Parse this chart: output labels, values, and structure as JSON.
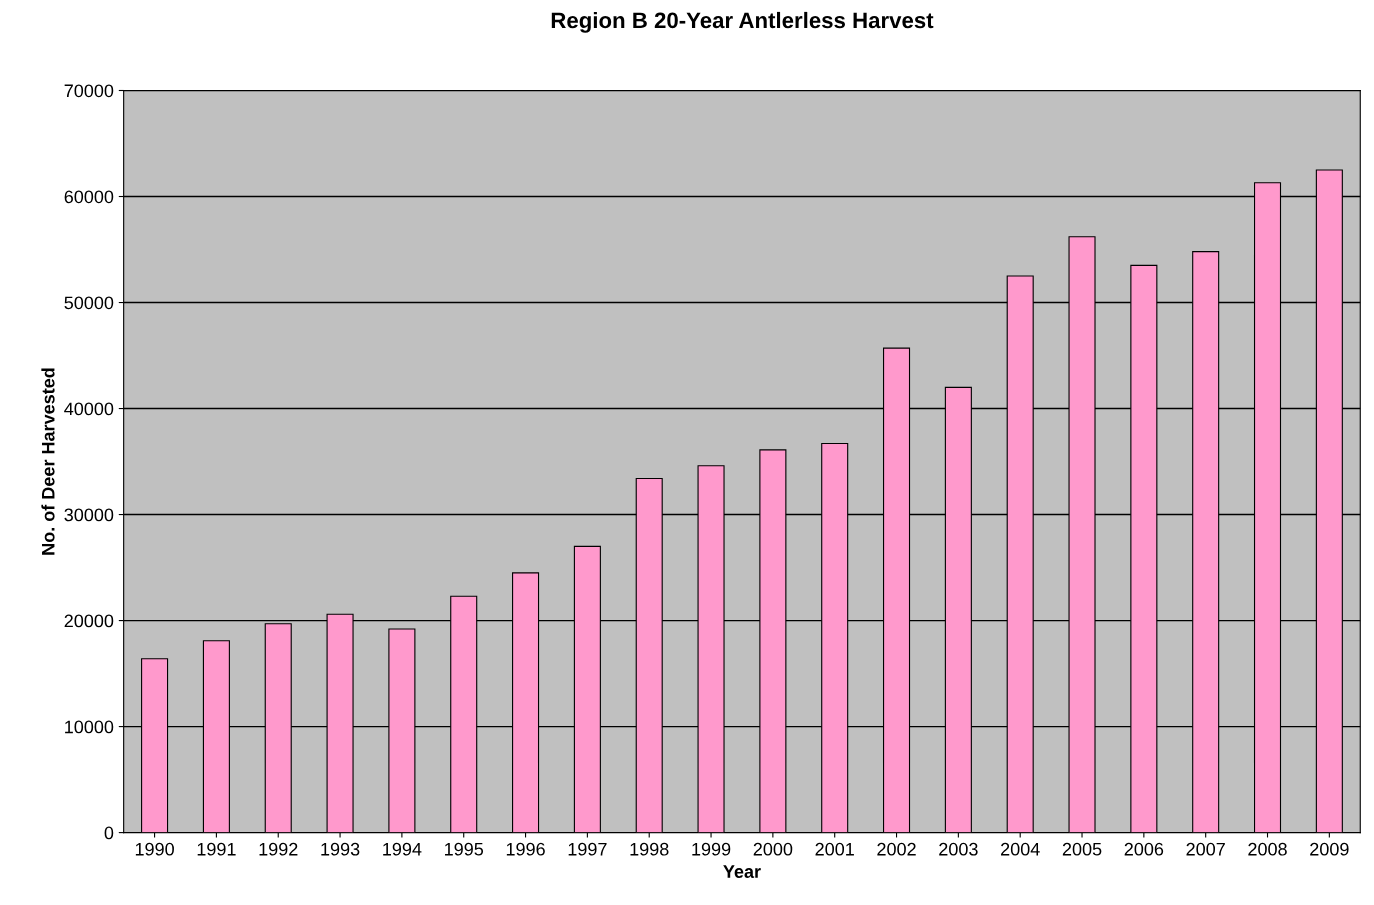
{
  "chart_data": {
    "type": "bar",
    "title": "Region B 20-Year Antlerless Harvest",
    "xlabel": "Year",
    "ylabel": "No. of Deer Harvested",
    "categories": [
      "1990",
      "1991",
      "1992",
      "1993",
      "1994",
      "1995",
      "1996",
      "1997",
      "1998",
      "1999",
      "2000",
      "2001",
      "2002",
      "2003",
      "2004",
      "2005",
      "2006",
      "2007",
      "2008",
      "2009"
    ],
    "values": [
      16400,
      18100,
      19700,
      20600,
      19200,
      22300,
      24500,
      27000,
      33400,
      34600,
      36100,
      36700,
      45700,
      42000,
      52500,
      56200,
      53500,
      54800,
      61300,
      62500
    ],
    "color": "#ff99cc",
    "ylim": [
      0,
      70000
    ],
    "yticks": [
      0,
      10000,
      20000,
      30000,
      40000,
      50000,
      60000,
      70000
    ],
    "grid": "y"
  }
}
